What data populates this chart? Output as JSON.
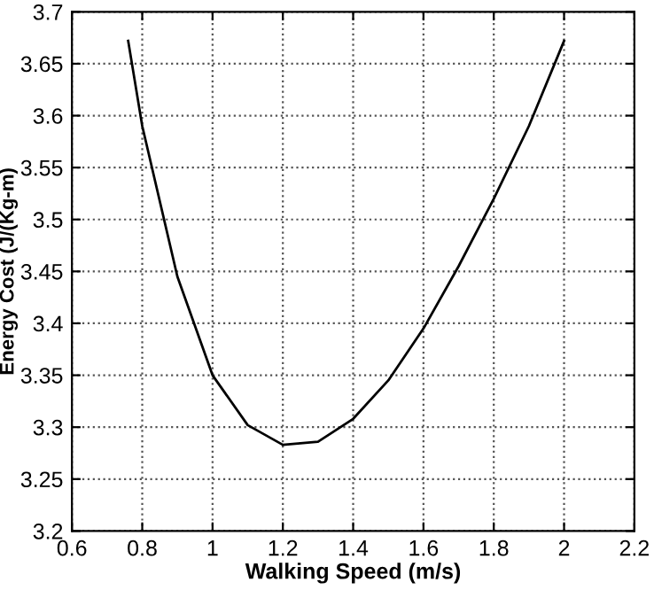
{
  "chart_data": {
    "type": "line",
    "xlabel": "Walking Speed (m/s)",
    "ylabel": "Energy Cost (J/(Kg-m)",
    "x": [
      0.76,
      0.8,
      0.9,
      1.0,
      1.1,
      1.2,
      1.3,
      1.4,
      1.5,
      1.6,
      1.7,
      1.8,
      1.9,
      2.0
    ],
    "series": [
      {
        "color": "#000000",
        "values": [
          3.672,
          3.59,
          3.445,
          3.35,
          3.302,
          3.283,
          3.286,
          3.308,
          3.345,
          3.395,
          3.455,
          3.52,
          3.59,
          3.672
        ]
      }
    ],
    "xlim": [
      0.6,
      2.2
    ],
    "xticks": [
      0.6,
      0.8,
      1,
      1.2,
      1.4,
      1.6,
      1.8,
      2,
      2.2
    ],
    "ylim": [
      3.2,
      3.7
    ],
    "yticks": [
      3.2,
      3.25,
      3.3,
      3.35,
      3.4,
      3.45,
      3.5,
      3.55,
      3.6,
      3.65,
      3.7
    ],
    "grid": true,
    "line_style": "solid",
    "marker": "none"
  }
}
